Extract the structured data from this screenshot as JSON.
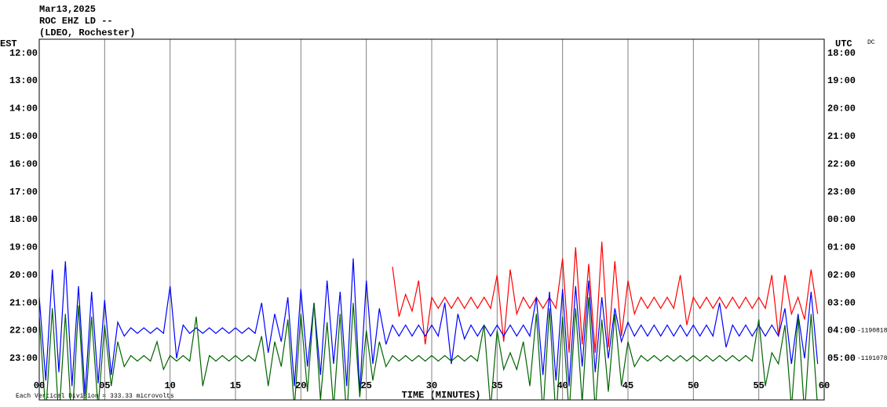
{
  "chart_data": {
    "type": "helicorder",
    "title": "Mar13,2025",
    "subtitle": "ROC EHZ LD --",
    "station": "(LDEO, Rochester)",
    "left_axis_label": "EST",
    "right_axis_label": "UTC",
    "corner_label": "DC",
    "x_label": "TIME (MINUTES)",
    "footnote": "Each Vertical Division = 333.33 microvolts",
    "xlim": [
      0,
      60
    ],
    "xticks": [
      {
        "value": 0,
        "label": "00"
      },
      {
        "value": 5,
        "label": "05"
      },
      10,
      15,
      20,
      25,
      30,
      35,
      40,
      45,
      50,
      55,
      60
    ],
    "ylim": [
      -0.5,
      12.5
    ],
    "yticks": [
      {
        "value": 0,
        "label": "12:00"
      },
      {
        "value": 1,
        "label": "13:00"
      },
      {
        "value": 2,
        "label": "14:00"
      },
      {
        "value": 3,
        "label": "15:00"
      },
      {
        "value": 4,
        "label": "16:00"
      },
      {
        "value": 5,
        "label": "17:00"
      },
      {
        "value": 6,
        "label": "18:00"
      },
      {
        "value": 7,
        "label": "19:00"
      },
      {
        "value": 8,
        "label": "20:00"
      },
      {
        "value": 9,
        "label": "21:00"
      },
      {
        "value": 10,
        "label": "22:00"
      },
      {
        "value": 11,
        "label": "23:00"
      }
    ],
    "y2ticks": [
      {
        "value": 0,
        "label": "18:00"
      },
      {
        "value": 1,
        "label": "19:00"
      },
      {
        "value": 2,
        "label": "20:00"
      },
      {
        "value": 3,
        "label": "21:00"
      },
      {
        "value": 4,
        "label": "22:00"
      },
      {
        "value": 5,
        "label": "23:00"
      },
      {
        "value": 6,
        "label": "00:00"
      },
      {
        "value": 7,
        "label": "01:00"
      },
      {
        "value": 8,
        "label": "02:00"
      },
      {
        "value": 9,
        "label": "03:00"
      },
      {
        "value": 10,
        "label": "04:00"
      },
      {
        "value": 11,
        "label": "05:00"
      }
    ],
    "row_annotations": [
      {
        "value": 10,
        "label": "-1190818"
      },
      {
        "value": 11,
        "label": "-1191078"
      }
    ],
    "grid": true,
    "x": [
      0,
      0.5,
      1,
      1.5,
      2,
      2.5,
      3,
      3.5,
      4,
      4.5,
      5,
      5.5,
      6,
      6.5,
      7,
      7.5,
      8,
      8.5,
      9,
      9.5,
      10,
      10.5,
      11,
      11.5,
      12,
      12.5,
      13,
      13.5,
      14,
      14.5,
      15,
      15.5,
      16,
      16.5,
      17,
      17.5,
      18,
      18.5,
      19,
      19.5,
      20,
      20.5,
      21,
      21.5,
      22,
      22.5,
      23,
      23.5,
      24,
      24.5,
      25,
      25.5,
      26,
      26.5,
      27,
      27.5,
      28,
      28.5,
      29,
      29.5,
      30,
      30.5,
      31,
      31.5,
      32,
      32.5,
      33,
      33.5,
      34,
      34.5,
      35,
      35.5,
      36,
      36.5,
      37,
      37.5,
      38,
      38.5,
      39,
      39.5,
      40,
      40.5,
      41,
      41.5,
      42,
      42.5,
      43,
      43.5,
      44,
      44.5,
      45,
      45.5,
      46,
      46.5,
      47,
      47.5,
      48,
      48.5,
      49,
      49.5,
      50,
      50.5,
      51,
      51.5,
      52,
      52.5,
      53,
      53.5,
      54,
      54.5,
      55,
      55.5,
      56,
      56.5,
      57,
      57.5,
      58,
      58.5,
      59,
      59.5
    ],
    "series": [
      {
        "row": 9,
        "color": "#ff0000",
        "values": [
          null,
          null,
          null,
          null,
          null,
          null,
          null,
          null,
          null,
          null,
          null,
          null,
          null,
          null,
          null,
          null,
          null,
          null,
          null,
          null,
          null,
          null,
          null,
          null,
          null,
          null,
          null,
          null,
          null,
          null,
          null,
          null,
          null,
          null,
          null,
          null,
          null,
          null,
          null,
          null,
          null,
          null,
          null,
          null,
          null,
          null,
          null,
          null,
          null,
          null,
          null,
          null,
          null,
          null,
          1.3,
          0.5,
          0.3,
          0.3,
          0.8,
          1.5,
          0.2,
          0.2,
          0.2,
          0.2,
          0.2,
          0.2,
          0.2,
          0.2,
          0.2,
          0.2,
          1.0,
          1.4,
          1.2,
          0.4,
          0.2,
          0.2,
          0.2,
          0.2,
          0.2,
          0.2,
          1.6,
          1.8,
          2.0,
          1.5,
          1.4,
          1.8,
          2.2,
          1.6,
          1.5,
          1.2,
          0.8,
          0.4,
          0.2,
          0.2,
          0.2,
          0.2,
          0.2,
          0.2,
          1.0,
          0.8,
          0.2,
          0.2,
          0.2,
          0.2,
          0.2,
          0.2,
          0.2,
          0.2,
          0.2,
          0.2,
          0.2,
          0.2,
          1.0,
          1.2,
          1.0,
          0.4,
          0.2,
          0.6,
          1.2,
          0.4
        ]
      },
      {
        "row": 10,
        "color": "#0000ff",
        "values": [
          1.2,
          1.8,
          2.2,
          1.5,
          2.5,
          2.0,
          1.6,
          2.3,
          1.4,
          1.9,
          1.1,
          1.6,
          0.3,
          0.2,
          0.1,
          0.1,
          0.1,
          0.1,
          0.1,
          0.1,
          1.6,
          1.0,
          0.2,
          0.1,
          0.1,
          0.1,
          0.1,
          0.1,
          0.1,
          0.1,
          0.1,
          0.1,
          0.1,
          0.1,
          1.0,
          0.8,
          0.6,
          0.4,
          1.2,
          2.0,
          1.5,
          1.3,
          1.0,
          1.6,
          1.8,
          1.2,
          1.4,
          2.0,
          2.6,
          2.2,
          1.8,
          1.2,
          0.8,
          0.5,
          0.2,
          0.2,
          0.2,
          0.2,
          0.2,
          0.2,
          0.2,
          0.2,
          1.0,
          1.2,
          0.6,
          0.3,
          0.2,
          0.2,
          0.2,
          0.2,
          0.2,
          0.2,
          0.2,
          0.2,
          0.2,
          0.2,
          1.2,
          1.6,
          1.4,
          1.8,
          1.5,
          2.0,
          1.6,
          1.3,
          1.8,
          1.5,
          1.2,
          1.0,
          0.8,
          0.4,
          0.3,
          0.2,
          0.2,
          0.2,
          0.2,
          0.2,
          0.2,
          0.2,
          0.2,
          0.2,
          0.2,
          0.2,
          0.2,
          0.2,
          1.0,
          0.6,
          0.2,
          0.2,
          0.2,
          0.2,
          0.2,
          0.2,
          0.2,
          0.2,
          0.8,
          1.2,
          0.6,
          1.0,
          1.4,
          1.2
        ]
      },
      {
        "row": 11,
        "color": "#006400",
        "values": [
          1.5,
          2.0,
          1.8,
          2.2,
          1.6,
          2.4,
          1.9,
          2.0,
          1.5,
          1.8,
          1.2,
          1.0,
          0.6,
          0.3,
          0.1,
          0.1,
          0.1,
          0.1,
          0.6,
          0.4,
          0.1,
          0.1,
          0.1,
          0.1,
          1.5,
          1.0,
          0.1,
          0.1,
          0.1,
          0.1,
          0.1,
          0.1,
          0.1,
          0.1,
          0.8,
          1.0,
          0.6,
          0.3,
          1.4,
          1.8,
          1.6,
          1.2,
          2.0,
          1.5,
          1.3,
          1.8,
          1.6,
          2.2,
          2.0,
          1.4,
          1.0,
          0.8,
          0.6,
          0.3,
          0.1,
          0.1,
          0.1,
          0.1,
          0.1,
          0.1,
          0.1,
          0.1,
          0.1,
          0.1,
          0.1,
          0.1,
          0.1,
          0.1,
          1.2,
          1.8,
          1.0,
          0.4,
          0.2,
          0.4,
          0.6,
          1.0,
          1.6,
          2.0,
          1.8,
          2.2,
          1.5,
          2.0,
          1.8,
          1.6,
          2.2,
          1.9,
          1.4,
          1.2,
          1.6,
          1.0,
          0.6,
          0.3,
          0.1,
          0.1,
          0.1,
          0.1,
          0.1,
          0.1,
          0.1,
          0.1,
          0.1,
          0.1,
          0.1,
          0.1,
          0.1,
          0.1,
          0.1,
          0.1,
          0.1,
          0.1,
          1.4,
          1.0,
          0.2,
          0.2,
          1.2,
          1.8,
          1.5,
          2.0,
          1.6,
          1.8
        ]
      }
    ]
  }
}
